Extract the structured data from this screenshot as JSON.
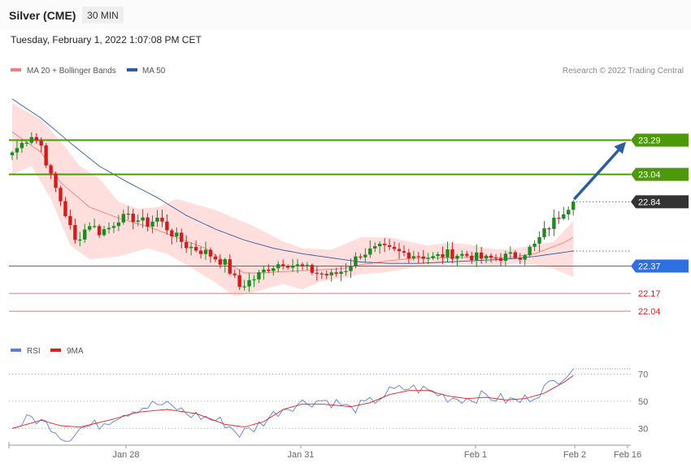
{
  "header": {
    "title": "Silver (CME)",
    "interval": "30 MIN",
    "timestamp": "Tuesday, February 1, 2022 1:07:08 PM CET",
    "credit": "Research © 2022 Trading Central"
  },
  "colors": {
    "ma20": "#f08080",
    "ma50": "#2e5d9e",
    "bands_fill": "#ffdede",
    "candle_up": "#1e8a22",
    "candle_down": "#cc1f1f",
    "resistance": "#4c9a0a",
    "support": "#2f6fe0",
    "support_red": "#f4a0a0",
    "arrow": "#2e5d9e",
    "rsi": "#5a7fdc",
    "rsi_ma": "#e02020",
    "current": "#333333"
  },
  "legend": {
    "ma20": "MA 20 + Bollinger Bands",
    "ma50": "MA 50",
    "rsi": "RSI",
    "rsi_ma": "9MA"
  },
  "levels": {
    "resistance": [
      {
        "value": 23.29,
        "label": "23.29"
      },
      {
        "value": 23.04,
        "label": "23.04"
      }
    ],
    "current": {
      "value": 22.84,
      "label": "22.84"
    },
    "pivot": {
      "value": 22.37,
      "label": "22.37"
    },
    "support": [
      {
        "value": 22.17,
        "label": "22.17"
      },
      {
        "value": 22.04,
        "label": "22.04"
      }
    ]
  },
  "x_axis": {
    "labels": [
      "Jan 28",
      "Jan 31",
      "Feb 1",
      "Feb 2",
      "Feb 16"
    ]
  },
  "rsi_axis": {
    "ticks": [
      70,
      50,
      30
    ]
  },
  "chart_data": {
    "type": "candlestick",
    "ylim": [
      21.94,
      23.72
    ],
    "rsi_ylim": [
      20,
      80
    ],
    "target": 23.29,
    "anchors": {
      "close": [
        [
          0,
          23.2
        ],
        [
          4,
          23.33
        ],
        [
          6,
          23.25
        ],
        [
          8,
          23.02
        ],
        [
          10,
          22.85
        ],
        [
          13,
          22.55
        ],
        [
          16,
          22.68
        ],
        [
          18,
          22.62
        ],
        [
          20,
          22.65
        ],
        [
          22,
          22.72
        ],
        [
          25,
          22.72
        ],
        [
          28,
          22.68
        ],
        [
          30,
          22.72
        ],
        [
          33,
          22.61
        ],
        [
          36,
          22.52
        ],
        [
          40,
          22.47
        ],
        [
          44,
          22.39
        ],
        [
          47,
          22.22
        ],
        [
          50,
          22.28
        ],
        [
          53,
          22.36
        ],
        [
          56,
          22.4
        ],
        [
          60,
          22.36
        ],
        [
          63,
          22.32
        ],
        [
          66,
          22.3
        ],
        [
          69,
          22.35
        ],
        [
          72,
          22.46
        ],
        [
          76,
          22.5
        ],
        [
          80,
          22.47
        ],
        [
          84,
          22.45
        ],
        [
          87,
          22.43
        ],
        [
          90,
          22.46
        ],
        [
          94,
          22.45
        ],
        [
          98,
          22.42
        ],
        [
          102,
          22.44
        ],
        [
          105,
          22.45
        ],
        [
          108,
          22.52
        ],
        [
          110,
          22.62
        ],
        [
          112,
          22.7
        ],
        [
          114,
          22.78
        ],
        [
          116,
          22.84
        ]
      ],
      "ma20": [
        [
          0,
          23.35
        ],
        [
          6,
          23.2
        ],
        [
          10,
          22.98
        ],
        [
          16,
          22.8
        ],
        [
          22,
          22.72
        ],
        [
          28,
          22.66
        ],
        [
          34,
          22.58
        ],
        [
          40,
          22.5
        ],
        [
          44,
          22.4
        ],
        [
          48,
          22.32
        ],
        [
          52,
          22.32
        ],
        [
          56,
          22.33
        ],
        [
          62,
          22.34
        ],
        [
          68,
          22.35
        ],
        [
          72,
          22.38
        ],
        [
          78,
          22.41
        ],
        [
          84,
          22.43
        ],
        [
          90,
          22.43
        ],
        [
          96,
          22.44
        ],
        [
          102,
          22.43
        ],
        [
          108,
          22.46
        ],
        [
          114,
          22.54
        ],
        [
          116,
          22.58
        ]
      ],
      "ma50": [
        [
          0,
          23.59
        ],
        [
          6,
          23.45
        ],
        [
          12,
          23.27
        ],
        [
          18,
          23.1
        ],
        [
          24,
          22.98
        ],
        [
          30,
          22.87
        ],
        [
          36,
          22.74
        ],
        [
          42,
          22.64
        ],
        [
          48,
          22.56
        ],
        [
          54,
          22.5
        ],
        [
          60,
          22.46
        ],
        [
          66,
          22.43
        ],
        [
          72,
          22.4
        ],
        [
          78,
          22.39
        ],
        [
          84,
          22.39
        ],
        [
          90,
          22.4
        ],
        [
          96,
          22.41
        ],
        [
          102,
          22.42
        ],
        [
          108,
          22.44
        ],
        [
          116,
          22.48
        ]
      ],
      "band_upper": [
        [
          0,
          23.56
        ],
        [
          6,
          23.44
        ],
        [
          10,
          23.28
        ],
        [
          14,
          23.1
        ],
        [
          18,
          23.01
        ],
        [
          22,
          22.84
        ],
        [
          26,
          22.79
        ],
        [
          30,
          22.8
        ],
        [
          34,
          22.86
        ],
        [
          38,
          22.82
        ],
        [
          42,
          22.78
        ],
        [
          46,
          22.72
        ],
        [
          50,
          22.66
        ],
        [
          56,
          22.55
        ],
        [
          60,
          22.5
        ],
        [
          66,
          22.49
        ],
        [
          72,
          22.58
        ],
        [
          78,
          22.58
        ],
        [
          82,
          22.55
        ],
        [
          86,
          22.52
        ],
        [
          90,
          22.54
        ],
        [
          94,
          22.53
        ],
        [
          98,
          22.5
        ],
        [
          102,
          22.49
        ],
        [
          108,
          22.52
        ],
        [
          112,
          22.55
        ],
        [
          116,
          22.7
        ]
      ],
      "band_lower": [
        [
          0,
          23.04
        ],
        [
          4,
          23.1
        ],
        [
          8,
          22.86
        ],
        [
          12,
          22.52
        ],
        [
          16,
          22.42
        ],
        [
          22,
          22.44
        ],
        [
          28,
          22.5
        ],
        [
          32,
          22.46
        ],
        [
          36,
          22.38
        ],
        [
          42,
          22.25
        ],
        [
          46,
          22.15
        ],
        [
          50,
          22.18
        ],
        [
          56,
          22.24
        ],
        [
          60,
          22.2
        ],
        [
          64,
          22.26
        ],
        [
          68,
          22.28
        ],
        [
          72,
          22.31
        ],
        [
          76,
          22.32
        ],
        [
          80,
          22.34
        ],
        [
          84,
          22.37
        ],
        [
          90,
          22.38
        ],
        [
          96,
          22.38
        ],
        [
          100,
          22.37
        ],
        [
          104,
          22.39
        ],
        [
          108,
          22.38
        ],
        [
          112,
          22.35
        ],
        [
          116,
          22.29
        ]
      ],
      "rsi": [
        [
          0,
          30
        ],
        [
          4,
          38
        ],
        [
          8,
          32
        ],
        [
          11,
          22
        ],
        [
          14,
          30
        ],
        [
          18,
          33
        ],
        [
          22,
          40
        ],
        [
          26,
          45
        ],
        [
          30,
          48
        ],
        [
          34,
          45
        ],
        [
          36,
          41
        ],
        [
          40,
          38
        ],
        [
          44,
          34
        ],
        [
          47,
          26
        ],
        [
          50,
          30
        ],
        [
          53,
          38
        ],
        [
          56,
          45
        ],
        [
          60,
          49
        ],
        [
          64,
          51
        ],
        [
          68,
          48
        ],
        [
          70,
          44
        ],
        [
          74,
          49
        ],
        [
          78,
          57
        ],
        [
          82,
          60
        ],
        [
          86,
          58
        ],
        [
          90,
          53
        ],
        [
          94,
          52
        ],
        [
          98,
          54
        ],
        [
          102,
          51
        ],
        [
          105,
          50
        ],
        [
          108,
          55
        ],
        [
          112,
          64
        ],
        [
          114,
          70
        ],
        [
          116,
          74
        ]
      ],
      "rsi_ma": [
        [
          0,
          30
        ],
        [
          6,
          36
        ],
        [
          10,
          32
        ],
        [
          14,
          31
        ],
        [
          20,
          36
        ],
        [
          26,
          42
        ],
        [
          32,
          44
        ],
        [
          38,
          41
        ],
        [
          44,
          33
        ],
        [
          48,
          31
        ],
        [
          52,
          35
        ],
        [
          56,
          44
        ],
        [
          60,
          48
        ],
        [
          64,
          48
        ],
        [
          70,
          46
        ],
        [
          74,
          49
        ],
        [
          78,
          55
        ],
        [
          82,
          58
        ],
        [
          86,
          58
        ],
        [
          90,
          54
        ],
        [
          94,
          52
        ],
        [
          98,
          53
        ],
        [
          102,
          51
        ],
        [
          106,
          52
        ],
        [
          110,
          56
        ],
        [
          114,
          64
        ],
        [
          116,
          69
        ]
      ]
    }
  }
}
